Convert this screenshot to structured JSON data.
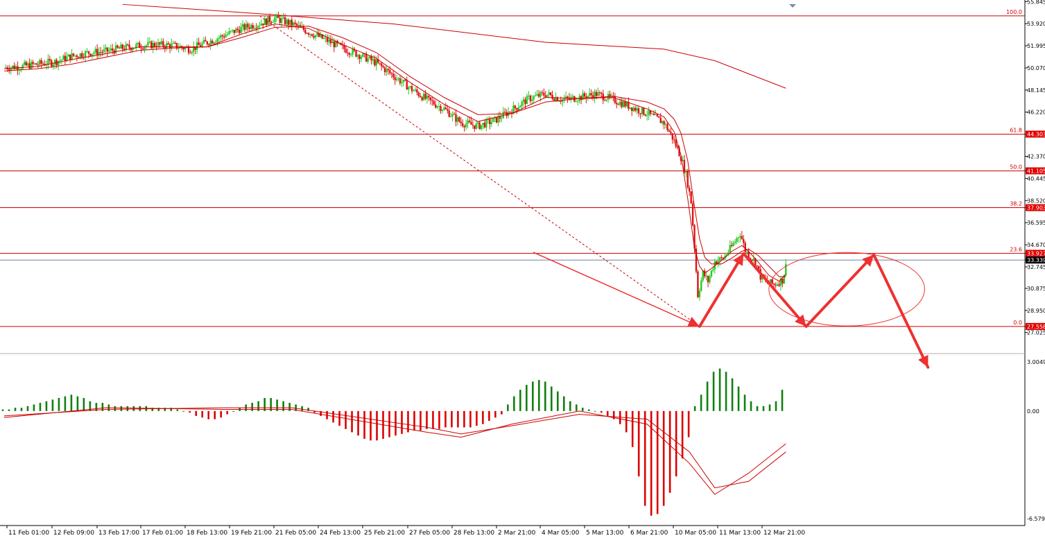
{
  "chart_data": {
    "type": "candlestick",
    "colors": {
      "bull": "#22cc22",
      "bear": "#dd1111",
      "ma": "#cc0000",
      "fib": "#cc0000",
      "annotation": "#ee3030",
      "macd_pos": "#108010",
      "macd_neg": "#dd0000",
      "price_tag": "#e00000",
      "current_tag": "#000000"
    },
    "y_axis": {
      "range": [
        25.8,
        55.8
      ],
      "tick_labels": [
        "55.845",
        "53.920",
        "51.995",
        "50.070",
        "48.145",
        "46.220",
        "44.303",
        "42.370",
        "41.105",
        "40.445",
        "38.520",
        "37.903",
        "36.595",
        "34.670",
        "33.927",
        "33.339",
        "32.745",
        "30.875",
        "28.950",
        "27.558",
        "27.025"
      ]
    },
    "highlighted_prices": [
      "44.303",
      "41.105",
      "37.903",
      "33.927",
      "27.558"
    ],
    "current_price": "33.339",
    "fibonacci": [
      {
        "level": "100.0",
        "price": 54.6
      },
      {
        "level": "61.8",
        "price": 44.303
      },
      {
        "level": "50.0",
        "price": 41.105
      },
      {
        "level": "38.2",
        "price": 37.903
      },
      {
        "level": "23.6",
        "price": 33.927
      },
      {
        "level": "0.0",
        "price": 27.558
      }
    ],
    "x_axis": {
      "tick_labels": [
        "11 Feb 01:00",
        "12 Feb 09:00",
        "13 Feb 17:00",
        "17 Feb 01:00",
        "18 Feb 13:00",
        "19 Feb 21:00",
        "21 Feb 05:00",
        "24 Feb 13:00",
        "25 Feb 21:00",
        "27 Feb 05:00",
        "28 Feb 13:00",
        "2 Mar 21:00",
        "4 Mar 05:00",
        "5 Mar 13:00",
        "6 Mar 21:00",
        "10 Mar 05:00",
        "11 Mar 13:00",
        "12 Mar 21:00"
      ]
    },
    "close_path": [
      [
        0,
        50.1
      ],
      [
        10,
        50.2
      ],
      [
        20,
        50.4
      ],
      [
        30,
        50.6
      ],
      [
        40,
        51.1
      ],
      [
        50,
        51.4
      ],
      [
        60,
        51.5
      ],
      [
        70,
        51.8
      ],
      [
        80,
        52.0
      ],
      [
        90,
        52.1
      ],
      [
        100,
        52.0
      ],
      [
        110,
        51.7
      ],
      [
        120,
        52.3
      ],
      [
        130,
        52.9
      ],
      [
        140,
        53.5
      ],
      [
        150,
        53.9
      ],
      [
        160,
        54.4
      ],
      [
        170,
        53.9
      ],
      [
        180,
        53.2
      ],
      [
        190,
        52.5
      ],
      [
        200,
        51.8
      ],
      [
        210,
        51.2
      ],
      [
        220,
        50.5
      ],
      [
        230,
        49.4
      ],
      [
        240,
        48.3
      ],
      [
        250,
        47.3
      ],
      [
        260,
        46.5
      ],
      [
        270,
        45.3
      ],
      [
        280,
        45.0
      ],
      [
        290,
        45.5
      ],
      [
        300,
        46.4
      ],
      [
        310,
        47.4
      ],
      [
        320,
        47.8
      ],
      [
        330,
        47.3
      ],
      [
        340,
        47.5
      ],
      [
        350,
        47.8
      ],
      [
        360,
        47.3
      ],
      [
        370,
        46.7
      ],
      [
        380,
        46.1
      ],
      [
        390,
        45.3
      ],
      [
        395,
        44.0
      ],
      [
        400,
        42.3
      ],
      [
        403,
        40.8
      ],
      [
        406,
        38.4
      ],
      [
        408,
        34.5
      ],
      [
        410,
        30.3
      ],
      [
        413,
        32.2
      ],
      [
        416,
        31.5
      ],
      [
        420,
        33.2
      ],
      [
        425,
        33.5
      ],
      [
        430,
        34.5
      ],
      [
        435,
        35.7
      ],
      [
        438,
        34.2
      ],
      [
        441,
        33.6
      ],
      [
        444,
        33.2
      ],
      [
        447,
        31.9
      ],
      [
        450,
        31.5
      ],
      [
        455,
        31.2
      ],
      [
        460,
        31.6
      ],
      [
        462,
        32.8
      ]
    ],
    "ma_fast": [
      [
        0,
        50.0
      ],
      [
        20,
        50.2
      ],
      [
        40,
        50.8
      ],
      [
        60,
        51.3
      ],
      [
        80,
        51.9
      ],
      [
        100,
        51.9
      ],
      [
        120,
        51.9
      ],
      [
        140,
        53.0
      ],
      [
        160,
        53.9
      ],
      [
        180,
        53.5
      ],
      [
        200,
        52.1
      ],
      [
        220,
        50.9
      ],
      [
        240,
        48.8
      ],
      [
        260,
        46.9
      ],
      [
        280,
        45.4
      ],
      [
        300,
        46.1
      ],
      [
        320,
        47.5
      ],
      [
        340,
        47.4
      ],
      [
        360,
        47.5
      ],
      [
        380,
        46.5
      ],
      [
        390,
        45.8
      ],
      [
        396,
        44.5
      ],
      [
        400,
        42.5
      ],
      [
        404,
        38.7
      ],
      [
        408,
        34.4
      ],
      [
        411,
        32.8
      ],
      [
        414,
        32.2
      ],
      [
        418,
        32.6
      ],
      [
        424,
        33.3
      ],
      [
        430,
        34.1
      ],
      [
        436,
        34.6
      ],
      [
        440,
        34.1
      ],
      [
        446,
        33.1
      ],
      [
        452,
        32.0
      ],
      [
        458,
        31.5
      ],
      [
        462,
        32.1
      ]
    ],
    "ma_slow": [
      [
        0,
        49.8
      ],
      [
        20,
        50.0
      ],
      [
        40,
        50.4
      ],
      [
        60,
        51.0
      ],
      [
        80,
        51.6
      ],
      [
        100,
        51.8
      ],
      [
        120,
        51.9
      ],
      [
        140,
        52.7
      ],
      [
        160,
        53.6
      ],
      [
        180,
        53.7
      ],
      [
        200,
        52.7
      ],
      [
        220,
        51.4
      ],
      [
        240,
        49.3
      ],
      [
        260,
        47.5
      ],
      [
        280,
        46.0
      ],
      [
        300,
        46.1
      ],
      [
        320,
        47.1
      ],
      [
        340,
        47.4
      ],
      [
        360,
        47.6
      ],
      [
        380,
        47.1
      ],
      [
        390,
        46.5
      ],
      [
        396,
        45.6
      ],
      [
        400,
        44.4
      ],
      [
        404,
        42.0
      ],
      [
        408,
        38.0
      ],
      [
        411,
        35.2
      ],
      [
        414,
        33.6
      ],
      [
        418,
        33.0
      ],
      [
        424,
        33.0
      ],
      [
        430,
        33.5
      ],
      [
        436,
        34.1
      ],
      [
        440,
        34.3
      ],
      [
        446,
        33.7
      ],
      [
        452,
        32.8
      ],
      [
        458,
        31.9
      ],
      [
        462,
        31.9
      ]
    ],
    "ma_long": [
      [
        70,
        55.6
      ],
      [
        150,
        54.8
      ],
      [
        230,
        53.9
      ],
      [
        320,
        52.3
      ],
      [
        390,
        51.7
      ],
      [
        420,
        50.7
      ],
      [
        462,
        48.3
      ]
    ],
    "trend_line": {
      "from": [
        151,
        54.6
      ],
      "to": [
        411,
        27.558
      ]
    },
    "projection_path": [
      [
        313,
        34.0
      ],
      [
        411,
        27.558
      ],
      [
        437,
        33.9
      ],
      [
        474,
        27.558
      ],
      [
        514,
        33.8
      ],
      [
        546,
        24.0
      ]
    ],
    "projection_ellipse": {
      "center": [
        498,
        30.8
      ],
      "rx": 46,
      "ry_price": 3.2
    },
    "macd": {
      "zero_label": "0.00",
      "top_label": "3.0049",
      "bottom_label": "-6.5790",
      "range": [
        -6.579,
        3.0049
      ],
      "histogram": [
        0.1,
        0.1,
        0.2,
        0.2,
        0.3,
        0.4,
        0.5,
        0.6,
        0.7,
        0.8,
        0.9,
        1.0,
        0.9,
        0.8,
        0.6,
        0.5,
        0.5,
        0.4,
        0.3,
        0.3,
        0.3,
        0.3,
        0.3,
        0.3,
        0.2,
        0.2,
        0.2,
        0.2,
        0.1,
        0.0,
        -0.1,
        -0.3,
        -0.4,
        -0.5,
        -0.5,
        -0.4,
        -0.2,
        0.0,
        0.2,
        0.4,
        0.5,
        0.6,
        0.8,
        0.8,
        0.7,
        0.6,
        0.5,
        0.4,
        0.3,
        0.2,
        -0.1,
        -0.3,
        -0.5,
        -0.7,
        -0.9,
        -1.1,
        -1.3,
        -1.5,
        -1.7,
        -1.8,
        -1.8,
        -1.7,
        -1.6,
        -1.5,
        -1.4,
        -1.3,
        -1.2,
        -1.2,
        -1.1,
        -1.1,
        -1.1,
        -1.0,
        -1.0,
        -1.0,
        -1.0,
        -1.0,
        -0.9,
        -0.8,
        -0.6,
        -0.4,
        -0.2,
        0.4,
        0.9,
        1.3,
        1.6,
        1.8,
        1.9,
        1.8,
        1.5,
        1.2,
        0.9,
        0.6,
        0.4,
        0.2,
        0.1,
        0.0,
        -0.1,
        -0.3,
        -0.5,
        -0.8,
        -1.3,
        -2.2,
        -4.0,
        -5.8,
        -6.4,
        -6.3,
        -5.8,
        -5.0,
        -4.0,
        -2.9,
        -1.6,
        0.3,
        1.0,
        1.8,
        2.4,
        2.6,
        2.4,
        2.0,
        1.5,
        1.0,
        0.6,
        0.3,
        0.3,
        0.4,
        0.6,
        1.3
      ],
      "signal_a": [
        [
          0,
          -0.4
        ],
        [
          60,
          0.2
        ],
        [
          130,
          0.1
        ],
        [
          170,
          0.1
        ],
        [
          210,
          -0.6
        ],
        [
          250,
          -1.3
        ],
        [
          270,
          -1.6
        ],
        [
          300,
          -0.8
        ],
        [
          340,
          0.0
        ],
        [
          380,
          -0.8
        ],
        [
          405,
          -3.2
        ],
        [
          420,
          -5.1
        ],
        [
          440,
          -3.8
        ],
        [
          462,
          -2.0
        ]
      ],
      "signal_b": [
        [
          0,
          -0.3
        ],
        [
          60,
          0.1
        ],
        [
          130,
          0.2
        ],
        [
          170,
          0.2
        ],
        [
          210,
          -0.4
        ],
        [
          250,
          -1.0
        ],
        [
          270,
          -1.4
        ],
        [
          300,
          -0.9
        ],
        [
          340,
          -0.2
        ],
        [
          380,
          -0.5
        ],
        [
          405,
          -2.5
        ],
        [
          420,
          -4.7
        ],
        [
          440,
          -4.3
        ],
        [
          462,
          -2.5
        ]
      ]
    }
  }
}
